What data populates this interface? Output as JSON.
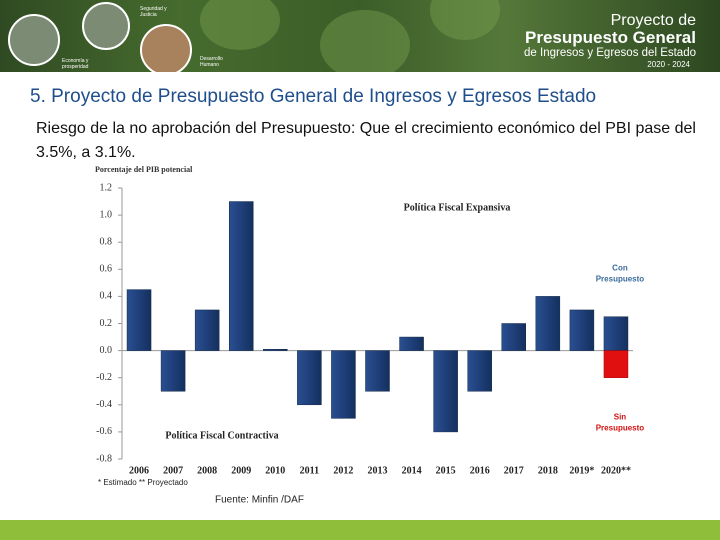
{
  "header": {
    "logos": [
      "Seguridad y Justicia",
      "Economía y prosperidad",
      "Desarrollo Humano"
    ],
    "project": [
      "Proyecto de",
      "Presupuesto General",
      "de Ingresos y Egresos del Estado",
      "2020 - 2024"
    ]
  },
  "title": "5. Proyecto de Presupuesto General de Ingresos y Egresos Estado",
  "subtitle": "Riesgo de la no aprobación del Presupuesto: Que el crecimiento económico del PBI pase del 3.5%, a 3.1%.",
  "chart_data": {
    "type": "bar",
    "y_label": "Porcentaje del PIB potencial",
    "categories": [
      "2006",
      "2007",
      "2008",
      "2009",
      "2010",
      "2011",
      "2012",
      "2013",
      "2014",
      "2015",
      "2016",
      "2017",
      "2018",
      "2019*",
      "2020**"
    ],
    "series": [
      {
        "name": "Con Presupuesto",
        "color": "#1f3f7a",
        "values": [
          0.45,
          -0.3,
          0.3,
          1.1,
          0.01,
          -0.4,
          -0.5,
          -0.3,
          0.1,
          -0.6,
          -0.3,
          0.2,
          0.4,
          0.3,
          0.25
        ]
      },
      {
        "name": "Sin Presupuesto",
        "color": "#e01010",
        "values": [
          null,
          null,
          null,
          null,
          null,
          null,
          null,
          null,
          null,
          null,
          null,
          null,
          null,
          null,
          -0.2
        ]
      }
    ],
    "ylim": [
      -0.8,
      1.2
    ],
    "yticks": [
      1.2,
      {
        "value": 1.0,
        "label": "1.0"
      },
      0.8,
      0.6,
      0.4,
      0.2,
      {
        "value": 0,
        "label": "0.0"
      },
      -0.2,
      -0.4,
      -0.6,
      -0.8
    ],
    "annotations": [
      "Política Fiscal Expansiva",
      "Política Fiscal Contractiva"
    ],
    "footnote": "* Estimado   ** Proyectado",
    "source": "Fuente: Minfin /DAF"
  }
}
